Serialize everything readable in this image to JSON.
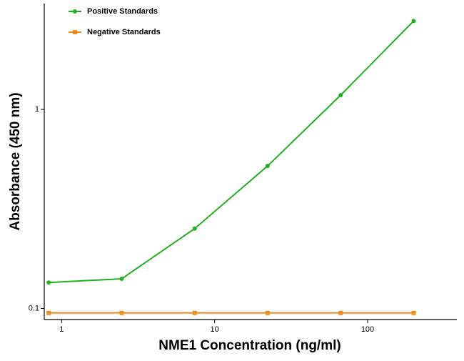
{
  "chart_data": {
    "type": "scatter",
    "x_label": "NME1 Concentration (ng/ml)",
    "y_label": "Absorbance (450 nm)",
    "x": [
      0.823,
      2.47,
      7.41,
      22.2,
      66.7,
      200
    ],
    "series": [
      {
        "name": "Positive Standards",
        "color": "#22b022",
        "marker": "circle",
        "values": [
          0.135,
          0.141,
          0.252,
          0.52,
          1.18,
          2.78
        ]
      },
      {
        "name": "Negative Standards",
        "color": "#f08a1c",
        "marker": "square",
        "values": [
          0.095,
          0.095,
          0.095,
          0.095,
          0.095,
          0.095
        ]
      }
    ],
    "xlim": [
      0.77,
      383
    ],
    "ylim": [
      0.088,
      3.4
    ],
    "xticks": [
      1,
      10,
      100
    ],
    "yticks": [
      0.1,
      1
    ],
    "xlog": true,
    "ylog": true,
    "legend": "upper left"
  }
}
